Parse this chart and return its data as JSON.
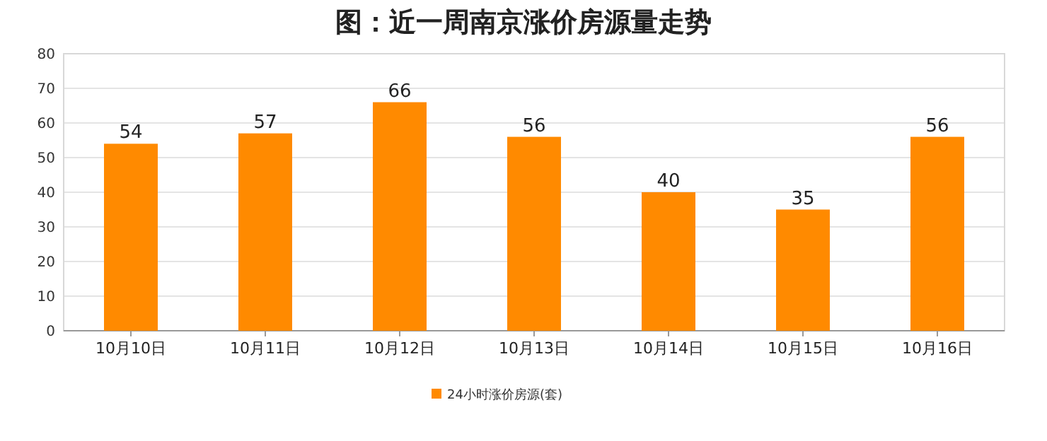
{
  "chart_data": {
    "type": "bar",
    "title": "图：近一周南京涨价房源量走势",
    "categories": [
      "10月10日",
      "10月11日",
      "10月12日",
      "10月13日",
      "10月14日",
      "10月15日",
      "10月16日"
    ],
    "series": [
      {
        "name": "24小时涨价房源(套)",
        "color": "#ff8a00",
        "values": [
          54,
          57,
          66,
          56,
          40,
          35,
          56
        ]
      }
    ],
    "ylim": [
      0,
      80
    ],
    "yticks": [
      0,
      10,
      20,
      30,
      40,
      50,
      60,
      70,
      80
    ],
    "grid": "y",
    "legend": "bottom",
    "data_labels": true
  }
}
